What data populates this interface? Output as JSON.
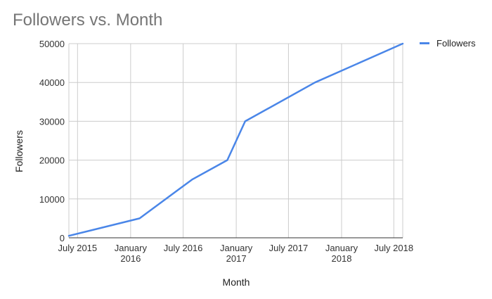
{
  "chart_data": {
    "type": "line",
    "title": "Followers vs. Month",
    "xlabel": "Month",
    "ylabel": "Followers",
    "ylim": [
      0,
      50000
    ],
    "yticks": [
      "0",
      "10000",
      "20000",
      "30000",
      "40000",
      "50000"
    ],
    "xlim": [
      "2015-06-01",
      "2018-08-01"
    ],
    "xticks": [
      {
        "date": "2015-07-01",
        "lines": [
          "July 2015"
        ]
      },
      {
        "date": "2016-01-01",
        "lines": [
          "January",
          "2016"
        ]
      },
      {
        "date": "2016-07-01",
        "lines": [
          "July 2016"
        ]
      },
      {
        "date": "2017-01-01",
        "lines": [
          "January",
          "2017"
        ]
      },
      {
        "date": "2017-07-01",
        "lines": [
          "July 2017"
        ]
      },
      {
        "date": "2018-01-01",
        "lines": [
          "January",
          "2018"
        ]
      },
      {
        "date": "2018-07-01",
        "lines": [
          "July 2018"
        ]
      }
    ],
    "grid": true,
    "legend": {
      "position": "right"
    },
    "series": [
      {
        "name": "Followers",
        "color": "#4a86e8",
        "points": [
          {
            "x": "2015-06-01",
            "y": 500
          },
          {
            "x": "2016-02-01",
            "y": 5000
          },
          {
            "x": "2016-08-01",
            "y": 15000
          },
          {
            "x": "2016-12-01",
            "y": 20000
          },
          {
            "x": "2017-02-01",
            "y": 30000
          },
          {
            "x": "2017-10-01",
            "y": 40000
          },
          {
            "x": "2018-08-01",
            "y": 50000
          }
        ]
      }
    ]
  }
}
